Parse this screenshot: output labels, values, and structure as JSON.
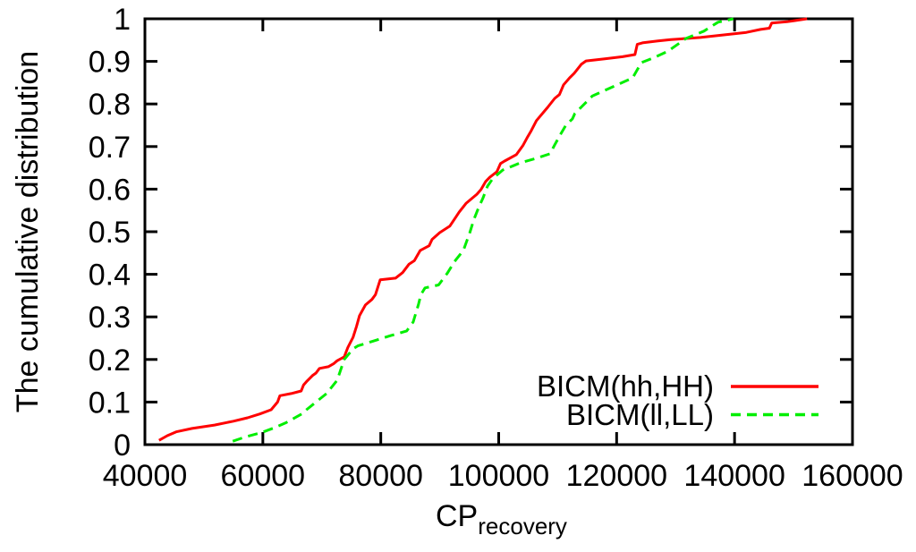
{
  "chart_data": {
    "type": "line",
    "title": "",
    "xlabel": "CP",
    "xlabel_subscript": "recovery",
    "ylabel": "The cumulative distribution",
    "xlim": [
      40000,
      160000
    ],
    "ylim": [
      0,
      1
    ],
    "xticks": [
      40000,
      60000,
      80000,
      100000,
      120000,
      140000,
      160000
    ],
    "yticks": [
      0,
      0.1,
      0.2,
      0.3,
      0.4,
      0.5,
      0.6,
      0.7,
      0.8,
      0.9,
      1
    ],
    "grid": false,
    "legend_position": "inside-bottom-right",
    "axis_color": "#000000",
    "series": [
      {
        "name": "BICM(hh,HH)",
        "color": "#ff0000",
        "dash": "solid",
        "points": [
          [
            42400,
            0.01
          ],
          [
            43800,
            0.021
          ],
          [
            45300,
            0.03
          ],
          [
            48000,
            0.038
          ],
          [
            51800,
            0.046
          ],
          [
            55000,
            0.055
          ],
          [
            57400,
            0.063
          ],
          [
            59500,
            0.072
          ],
          [
            61400,
            0.082
          ],
          [
            62500,
            0.1
          ],
          [
            62900,
            0.115
          ],
          [
            64800,
            0.12
          ],
          [
            66500,
            0.126
          ],
          [
            66900,
            0.14
          ],
          [
            67400,
            0.148
          ],
          [
            68400,
            0.162
          ],
          [
            69000,
            0.168
          ],
          [
            69600,
            0.179
          ],
          [
            71100,
            0.183
          ],
          [
            72000,
            0.19
          ],
          [
            72600,
            0.197
          ],
          [
            73800,
            0.206
          ],
          [
            74400,
            0.228
          ],
          [
            75300,
            0.252
          ],
          [
            75900,
            0.278
          ],
          [
            76400,
            0.303
          ],
          [
            77400,
            0.328
          ],
          [
            78500,
            0.341
          ],
          [
            79100,
            0.352
          ],
          [
            79900,
            0.387
          ],
          [
            82500,
            0.391
          ],
          [
            83700,
            0.404
          ],
          [
            84800,
            0.424
          ],
          [
            85700,
            0.432
          ],
          [
            86700,
            0.456
          ],
          [
            88200,
            0.467
          ],
          [
            88700,
            0.482
          ],
          [
            90000,
            0.498
          ],
          [
            91700,
            0.513
          ],
          [
            93300,
            0.546
          ],
          [
            94500,
            0.567
          ],
          [
            96300,
            0.588
          ],
          [
            97000,
            0.599
          ],
          [
            97800,
            0.618
          ],
          [
            98500,
            0.628
          ],
          [
            99700,
            0.641
          ],
          [
            100300,
            0.66
          ],
          [
            101000,
            0.666
          ],
          [
            103000,
            0.681
          ],
          [
            104100,
            0.702
          ],
          [
            104800,
            0.72
          ],
          [
            105500,
            0.737
          ],
          [
            106400,
            0.761
          ],
          [
            108300,
            0.792
          ],
          [
            109500,
            0.813
          ],
          [
            110300,
            0.822
          ],
          [
            111000,
            0.845
          ],
          [
            112000,
            0.861
          ],
          [
            112800,
            0.872
          ],
          [
            114000,
            0.893
          ],
          [
            114800,
            0.901
          ],
          [
            118000,
            0.906
          ],
          [
            121000,
            0.911
          ],
          [
            123100,
            0.916
          ],
          [
            123500,
            0.94
          ],
          [
            124500,
            0.944
          ],
          [
            127000,
            0.948
          ],
          [
            129200,
            0.951
          ],
          [
            134200,
            0.956
          ],
          [
            139400,
            0.964
          ],
          [
            142000,
            0.968
          ],
          [
            144400,
            0.975
          ],
          [
            145900,
            0.978
          ],
          [
            146300,
            0.99
          ],
          [
            148900,
            0.993
          ],
          [
            152300,
            1.0
          ]
        ]
      },
      {
        "name": "BICM(ll,LL)",
        "color": "#00ee00",
        "dash": "dashed",
        "points": [
          [
            54900,
            0.008
          ],
          [
            57000,
            0.018
          ],
          [
            59900,
            0.029
          ],
          [
            62000,
            0.04
          ],
          [
            64000,
            0.052
          ],
          [
            66700,
            0.073
          ],
          [
            67400,
            0.082
          ],
          [
            70800,
            0.12
          ],
          [
            72600,
            0.151
          ],
          [
            73800,
            0.2
          ],
          [
            75300,
            0.225
          ],
          [
            76100,
            0.232
          ],
          [
            78700,
            0.243
          ],
          [
            81700,
            0.256
          ],
          [
            84400,
            0.267
          ],
          [
            85500,
            0.288
          ],
          [
            86400,
            0.33
          ],
          [
            86800,
            0.352
          ],
          [
            87500,
            0.368
          ],
          [
            89800,
            0.375
          ],
          [
            91300,
            0.403
          ],
          [
            92500,
            0.43
          ],
          [
            94000,
            0.456
          ],
          [
            95100,
            0.498
          ],
          [
            95800,
            0.529
          ],
          [
            96600,
            0.557
          ],
          [
            97300,
            0.578
          ],
          [
            98100,
            0.607
          ],
          [
            99000,
            0.625
          ],
          [
            100700,
            0.645
          ],
          [
            102500,
            0.655
          ],
          [
            103700,
            0.662
          ],
          [
            106300,
            0.672
          ],
          [
            108700,
            0.683
          ],
          [
            109500,
            0.704
          ],
          [
            110500,
            0.729
          ],
          [
            111400,
            0.75
          ],
          [
            112500,
            0.765
          ],
          [
            112900,
            0.777
          ],
          [
            115900,
            0.819
          ],
          [
            120100,
            0.845
          ],
          [
            122700,
            0.861
          ],
          [
            124200,
            0.897
          ],
          [
            126200,
            0.908
          ],
          [
            128700,
            0.924
          ],
          [
            131800,
            0.954
          ],
          [
            134800,
            0.971
          ],
          [
            137200,
            0.992
          ],
          [
            139800,
            1.0
          ]
        ]
      }
    ]
  }
}
